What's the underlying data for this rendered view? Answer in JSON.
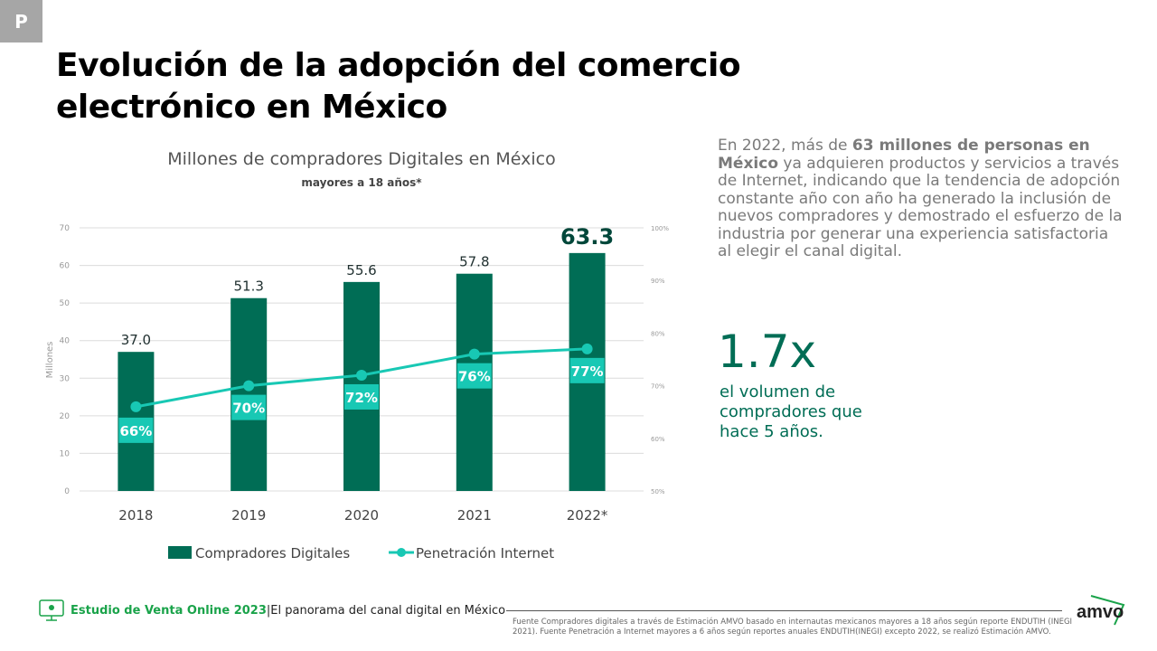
{
  "badge": "P",
  "title": "Evolución de la adopción del comercio electrónico en México",
  "chart_data": {
    "type": "bar",
    "title": "Millones de compradores Digitales en México",
    "subtitle": "mayores a 18 años*",
    "ylabel": "Millones",
    "categories": [
      "2018",
      "2019",
      "2020",
      "2021",
      "2022*"
    ],
    "ylim": [
      0,
      70
    ],
    "yticks": [
      "0",
      "10",
      "20",
      "30",
      "40",
      "50",
      "60",
      "70"
    ],
    "y2lim": [
      50,
      100
    ],
    "y2ticks": [
      "50%",
      "60%",
      "70%",
      "80%",
      "90%",
      "100%"
    ],
    "series": [
      {
        "name": "Compradores Digitales",
        "type": "bar",
        "color": "#006d55",
        "values": [
          37.0,
          51.3,
          55.6,
          57.8,
          63.3
        ],
        "labels": [
          "37.0",
          "51.3",
          "55.6",
          "57.8",
          "63.3"
        ]
      },
      {
        "name": "Penetración Internet",
        "type": "line",
        "axis": "right",
        "color": "#18c8b4",
        "values": [
          66,
          70,
          72,
          76,
          77
        ],
        "labels": [
          "66%",
          "70%",
          "72%",
          "76%",
          "77%"
        ]
      }
    ],
    "legend": "bottom",
    "grid": true
  },
  "paragraph": {
    "pre": "En 2022, más de ",
    "bold": "63 millones de personas en México",
    "post": " ya adquieren productos y servicios a través de Internet, indicando que la tendencia de adopción constante año con año ha generado la inclusión de nuevos compradores y demostrado el esfuerzo de la industria por generar una experiencia satisfactoria al elegir el canal digital."
  },
  "highlight": {
    "value": "1.7x",
    "text": "el volumen de compradores que hace 5 años."
  },
  "footer": {
    "study": "Estudio de Venta Online 2023",
    "sep": " | ",
    "subtitle": "El panorama del canal digital en México",
    "note": "Fuente Compradores digitales a través de Estimación AMVO basado en internautas mexicanos mayores a 18 años según reporte ENDUTIH (INEGI 2021). Fuente Penetración a Internet mayores a 6 años según reportes anuales ENDUTIH(INEGI) excepto 2022, se realizó Estimación AMVO.",
    "logo": "amvo"
  }
}
